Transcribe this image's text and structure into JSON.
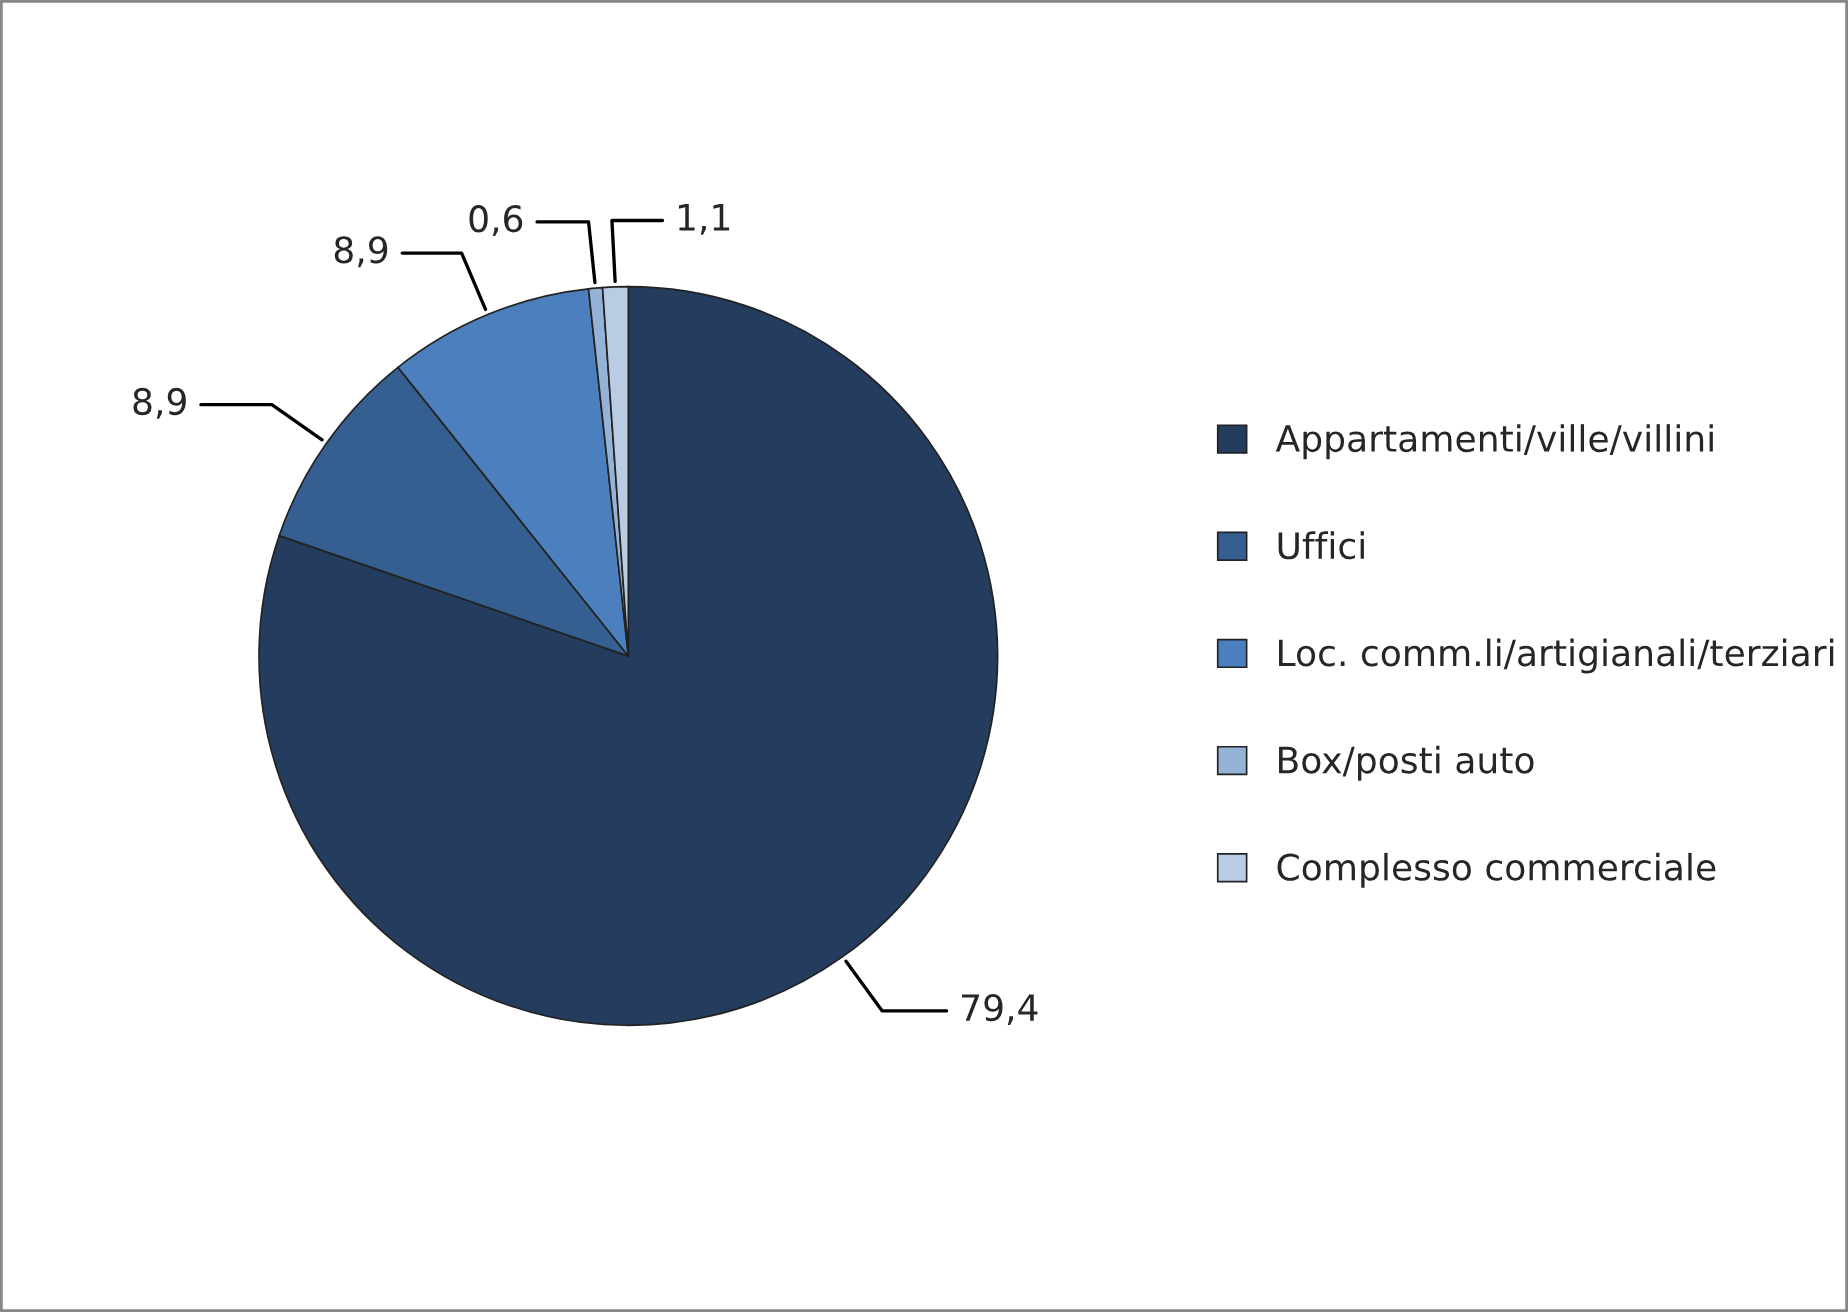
{
  "chart_data": {
    "type": "pie",
    "categories": [
      "Appartamenti/ville/villini",
      "Uffici",
      "Loc. comm.li/artigianali/terziari",
      "Box/posti auto",
      "Complesso commerciale"
    ],
    "values": [
      79.4,
      8.9,
      8.9,
      0.6,
      1.1
    ],
    "value_labels": [
      "79,4",
      "8,9",
      "8,9",
      "0,6",
      "1,1"
    ],
    "colors": [
      "#243c5e",
      "#355f91",
      "#4b7fbd",
      "#95b3d7",
      "#b9cce4"
    ],
    "legend": "right"
  }
}
